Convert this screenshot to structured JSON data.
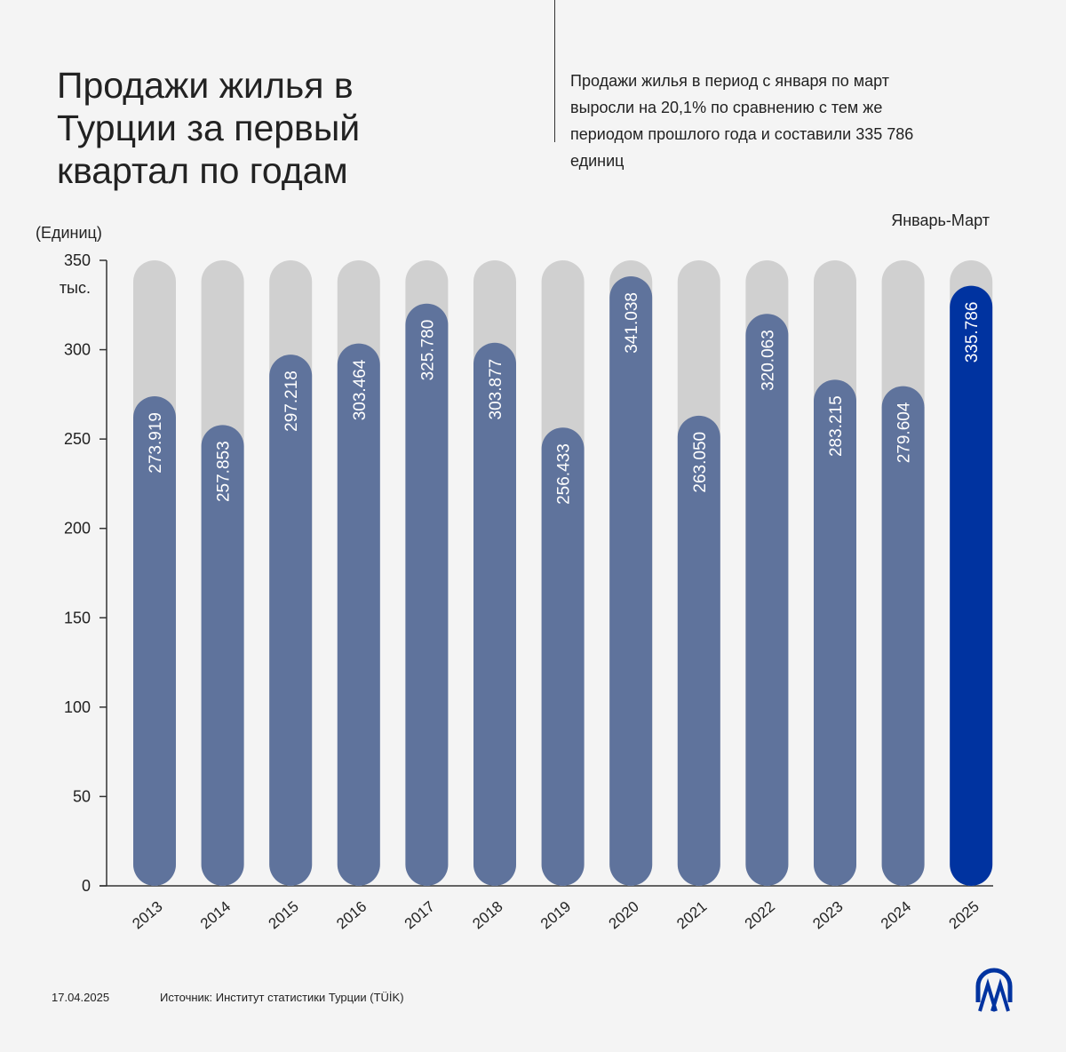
{
  "title": "Продажи жилья в Турции за первый квартал по годам",
  "subtitle": "Продажи жилья в период с января по март выросли на 20,1% по сравнению с тем же периодом прошлого года и составили 335 786 единиц",
  "footer": {
    "date": "17.04.2025",
    "source": "Источник: Институт статистики Турции (TÜİK)",
    "logo": "AA"
  },
  "chart_data": {
    "type": "bar",
    "title": "Продажи жилья в Турции за первый квартал по годам",
    "period_label": "Январь-Март",
    "ylabel": "(Единиц)",
    "ylim": [
      0,
      350
    ],
    "yticks": [
      "0",
      "50",
      "100",
      "150",
      "200",
      "250",
      "300",
      "350"
    ],
    "ytick_unit": "тыс.",
    "categories": [
      "2013",
      "2014",
      "2015",
      "2016",
      "2017",
      "2018",
      "2019",
      "2020",
      "2021",
      "2022",
      "2023",
      "2024",
      "2025"
    ],
    "values": [
      273.919,
      257.853,
      297.218,
      303.464,
      325.78,
      303.877,
      256.433,
      341.038,
      263.05,
      320.063,
      283.215,
      279.604,
      335.786
    ],
    "data_labels": [
      "273.919",
      "257.853",
      "297.218",
      "303.464",
      "325.780",
      "303.877",
      "256.433",
      "341.038",
      "263.050",
      "320.063",
      "283.215",
      "279.604",
      "335.786"
    ],
    "colors": {
      "bar": "#5f739c",
      "highlight": "#0033a0",
      "track": "#d0d0d0"
    },
    "grid": false
  }
}
